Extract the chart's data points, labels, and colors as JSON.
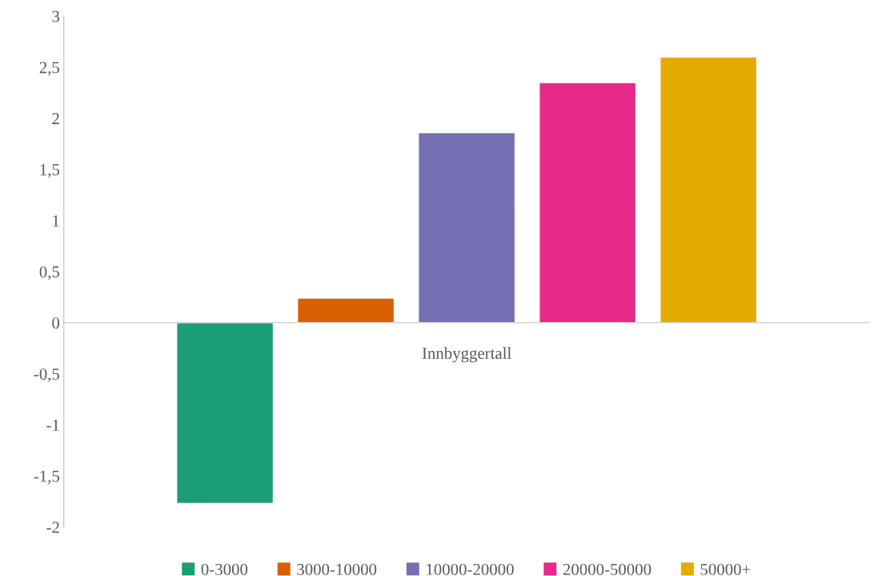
{
  "chart_data": {
    "type": "bar",
    "categories": [
      "Innbyggertall"
    ],
    "series": [
      {
        "name": "0-3000",
        "color": "#1b9e77",
        "values": [
          -1.77
        ]
      },
      {
        "name": "3000-10000",
        "color": "#d95f02",
        "values": [
          0.24
        ]
      },
      {
        "name": "10000-20000",
        "color": "#7570b3",
        "values": [
          1.86
        ]
      },
      {
        "name": "20000-50000",
        "color": "#e7298a",
        "values": [
          2.35
        ]
      },
      {
        "name": "50000+",
        "color": "#e6ab02",
        "values": [
          2.6
        ]
      }
    ],
    "ylim": [
      -2,
      3
    ],
    "yticks": [
      {
        "value": -2,
        "label": "-2"
      },
      {
        "value": -1.5,
        "label": "-1,5"
      },
      {
        "value": -1,
        "label": "-1"
      },
      {
        "value": -0.5,
        "label": "-0,5"
      },
      0,
      {
        "value": 0.5,
        "label": "0,5"
      },
      1,
      {
        "value": 1.5,
        "label": "1,5"
      },
      2,
      {
        "value": 2.5,
        "label": "2,5"
      },
      3
    ],
    "legend": "bottom"
  }
}
